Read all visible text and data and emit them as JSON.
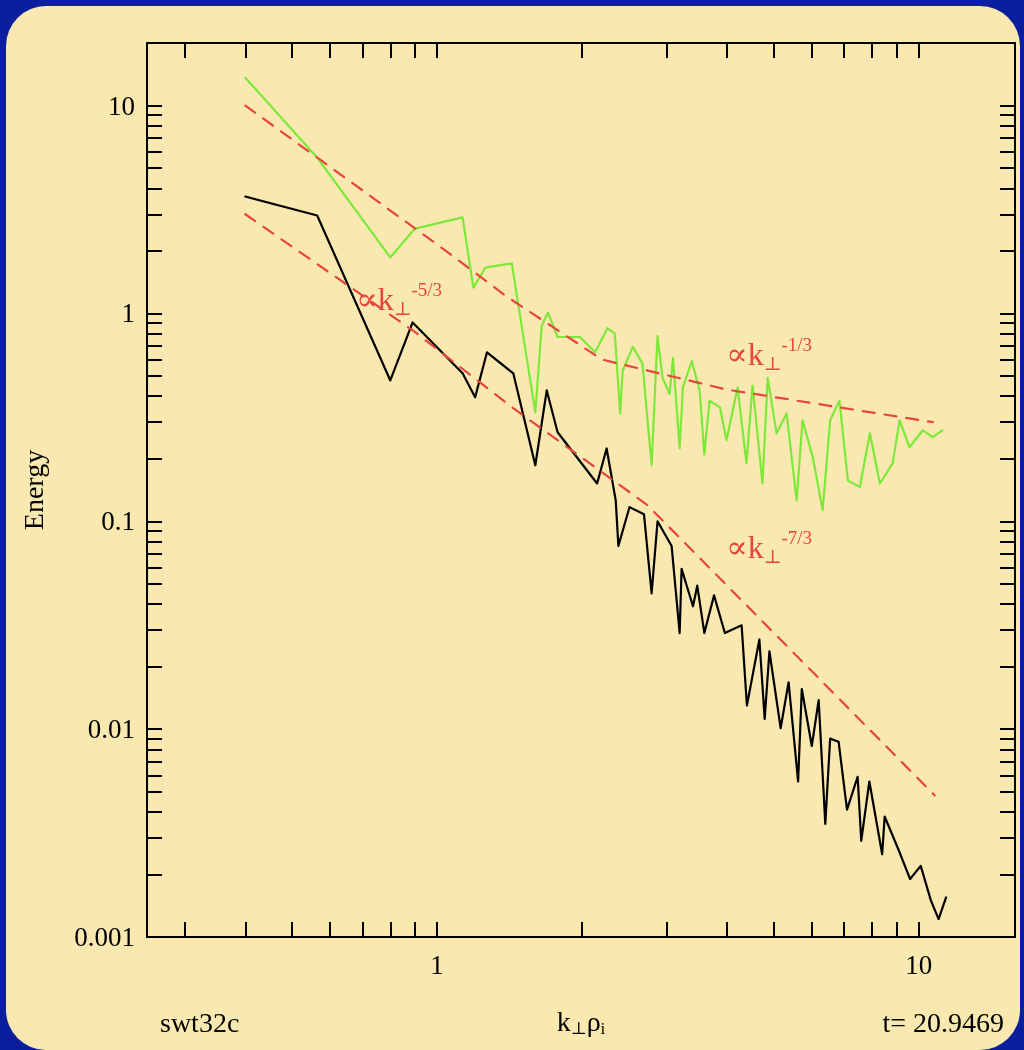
{
  "chart_data": {
    "type": "line",
    "xlabel": "k$_{⊥}$ρ$_{i}$",
    "ylabel": "Energy",
    "log": "xy",
    "grid": false,
    "marker": "none",
    "xlim": [
      0.25,
      15.85
    ],
    "ylim": [
      0.001,
      20
    ],
    "xticks": [
      {
        "value": 0.3,
        "label": null
      },
      {
        "value": 0.4,
        "label": null
      },
      {
        "value": 0.5,
        "label": null
      },
      {
        "value": 0.6,
        "label": null
      },
      {
        "value": 0.7,
        "label": null
      },
      {
        "value": 0.8,
        "label": null
      },
      {
        "value": 0.9,
        "label": null
      },
      1,
      {
        "value": 2,
        "label": null
      },
      {
        "value": 3,
        "label": null
      },
      {
        "value": 4,
        "label": null
      },
      {
        "value": 5,
        "label": null
      },
      {
        "value": 6,
        "label": null
      },
      {
        "value": 7,
        "label": null
      },
      {
        "value": 8,
        "label": null
      },
      {
        "value": 9,
        "label": null
      },
      10
    ],
    "yticks": [
      0.001,
      {
        "value": 0.002,
        "label": null
      },
      {
        "value": 0.003,
        "label": null
      },
      {
        "value": 0.004,
        "label": null
      },
      {
        "value": 0.005,
        "label": null
      },
      {
        "value": 0.006,
        "label": null
      },
      {
        "value": 0.007,
        "label": null
      },
      {
        "value": 0.008,
        "label": null
      },
      {
        "value": 0.009,
        "label": null
      },
      0.01,
      {
        "value": 0.02,
        "label": null
      },
      {
        "value": 0.03,
        "label": null
      },
      {
        "value": 0.04,
        "label": null
      },
      {
        "value": 0.05,
        "label": null
      },
      {
        "value": 0.06,
        "label": null
      },
      {
        "value": 0.07,
        "label": null
      },
      {
        "value": 0.08,
        "label": null
      },
      {
        "value": 0.09,
        "label": null
      },
      0.1,
      {
        "value": 0.2,
        "label": null
      },
      {
        "value": 0.3,
        "label": null
      },
      {
        "value": 0.4,
        "label": null
      },
      {
        "value": 0.5,
        "label": null
      },
      {
        "value": 0.6,
        "label": null
      },
      {
        "value": 0.7,
        "label": null
      },
      {
        "value": 0.8,
        "label": null
      },
      {
        "value": 0.9,
        "label": null
      },
      1,
      {
        "value": 2,
        "label": null
      },
      {
        "value": 3,
        "label": null
      },
      {
        "value": 4,
        "label": null
      },
      {
        "value": 5,
        "label": null
      },
      {
        "value": 6,
        "label": null
      },
      {
        "value": 7,
        "label": null
      },
      {
        "value": 8,
        "label": null
      },
      {
        "value": 9,
        "label": null
      },
      10
    ],
    "series": [
      {
        "color": "#7ee83a",
        "x": [
          0.4,
          0.566,
          0.8,
          0.9,
          1.13,
          1.19,
          1.26,
          1.43,
          1.6,
          1.65,
          1.7,
          1.78,
          1.98,
          2.13,
          2.26,
          2.34,
          2.4,
          2.43,
          2.55,
          2.67,
          2.79,
          2.87,
          2.94,
          3.04,
          3.09,
          3.19,
          3.24,
          3.38,
          3.51,
          3.59,
          3.68,
          3.87,
          3.99,
          4.21,
          4.39,
          4.52,
          4.74,
          4.86,
          5.07,
          5.32,
          5.58,
          5.74,
          6.03,
          6.32,
          6.55,
          6.85,
          7.13,
          7.55,
          7.92,
          8.31,
          8.83,
          9.13,
          9.57,
          10.2,
          10.7,
          11.2
        ],
        "values": [
          13.6,
          5.56,
          1.86,
          2.56,
          2.9,
          1.33,
          1.66,
          1.74,
          0.334,
          0.875,
          1.01,
          0.77,
          0.77,
          0.65,
          0.85,
          0.8,
          0.33,
          0.53,
          0.69,
          0.575,
          0.186,
          0.78,
          0.49,
          0.41,
          0.61,
          0.224,
          0.44,
          0.59,
          0.426,
          0.21,
          0.38,
          0.353,
          0.245,
          0.44,
          0.19,
          0.45,
          0.152,
          0.49,
          0.265,
          0.33,
          0.126,
          0.306,
          0.203,
          0.113,
          0.306,
          0.38,
          0.157,
          0.146,
          0.265,
          0.152,
          0.19,
          0.306,
          0.227,
          0.274,
          0.254,
          0.274
        ]
      },
      {
        "color": "#000000",
        "x": [
          0.4,
          0.564,
          0.8,
          0.89,
          1.13,
          1.2,
          1.27,
          1.44,
          1.6,
          1.69,
          1.78,
          2.15,
          2.25,
          2.35,
          2.38,
          2.51,
          2.69,
          2.79,
          2.87,
          3.07,
          3.19,
          3.22,
          3.4,
          3.47,
          3.59,
          3.76,
          3.96,
          4.29,
          4.4,
          4.67,
          4.79,
          4.9,
          5.17,
          5.37,
          5.62,
          5.72,
          6.0,
          6.2,
          6.4,
          6.55,
          6.82,
          7.1,
          7.47,
          7.6,
          7.9,
          8.4,
          8.5,
          9.1,
          9.6,
          10.1,
          10.6,
          11.0,
          11.4
        ],
        "values": [
          3.65,
          2.96,
          0.476,
          0.905,
          0.515,
          0.395,
          0.65,
          0.515,
          0.186,
          0.426,
          0.268,
          0.152,
          0.224,
          0.126,
          0.076,
          0.117,
          0.108,
          0.045,
          0.1,
          0.076,
          0.029,
          0.059,
          0.039,
          0.049,
          0.029,
          0.044,
          0.029,
          0.0316,
          0.013,
          0.027,
          0.0112,
          0.0237,
          0.0101,
          0.0168,
          0.0056,
          0.0156,
          0.0083,
          0.0138,
          0.0035,
          0.009,
          0.0087,
          0.0041,
          0.0059,
          0.0029,
          0.0056,
          0.0025,
          0.0038,
          0.0026,
          0.0019,
          0.0022,
          0.0015,
          0.00122,
          0.00155
        ]
      },
      {
        "type": "line",
        "color": "#e8453c",
        "line_style": "dashed",
        "x": [
          0.4,
          1.0,
          1.4,
          2.2,
          4.0,
          10.7
        ],
        "values": [
          10,
          2.15,
          1.2,
          0.6,
          0.43,
          0.3
        ]
      },
      {
        "type": "line",
        "color": "#e8453c",
        "line_style": "dashed",
        "x": [
          0.4,
          0.89,
          1.44,
          2.73,
          10.8
        ],
        "values": [
          3,
          0.83,
          0.35,
          0.12,
          0.0048
        ]
      }
    ],
    "annotations": [
      "∝k$_{⊥}$$^{-5/3}$",
      "∝k$_{⊥}$$^{-1/3}$",
      "∝k$_{⊥}$$^{-7/3}$",
      "swt32c",
      "t= 20.9469"
    ]
  }
}
